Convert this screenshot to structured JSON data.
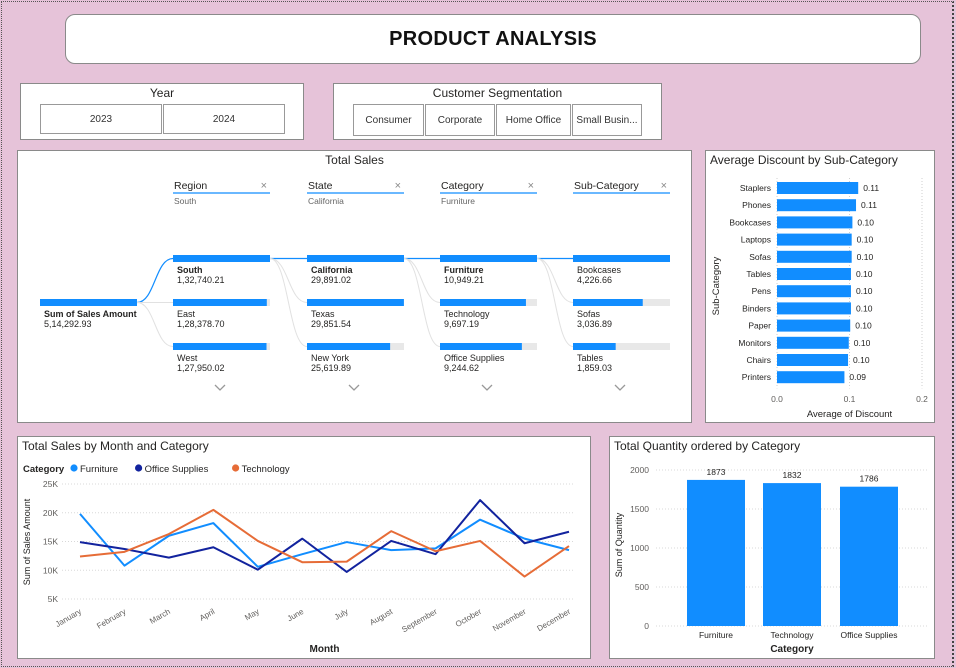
{
  "report_title": "PRODUCT ANALYSIS",
  "year_slicer": {
    "title": "Year",
    "options": [
      "2023",
      "2024"
    ]
  },
  "segment_slicer": {
    "title": "Customer Segmentation",
    "options": [
      "Consumer",
      "Corporate",
      "Home Office",
      "Small Busin..."
    ]
  },
  "decomp_tree": {
    "title": "Total Sales",
    "root": {
      "label": "Sum of Sales Amount",
      "value": "5,14,292.93"
    },
    "levels": [
      {
        "header": "Region",
        "selected": "South",
        "nodes": [
          {
            "label": "South",
            "value": "1,32,740.21",
            "fill": 1.0,
            "bold": true
          },
          {
            "label": "East",
            "value": "1,28,378.70",
            "fill": 0.967,
            "bold": false
          },
          {
            "label": "West",
            "value": "1,27,950.02",
            "fill": 0.964,
            "bold": false
          }
        ]
      },
      {
        "header": "State",
        "selected": "California",
        "nodes": [
          {
            "label": "California",
            "value": "29,891.02",
            "fill": 1.0,
            "bold": true
          },
          {
            "label": "Texas",
            "value": "29,851.54",
            "fill": 0.999,
            "bold": false
          },
          {
            "label": "New York",
            "value": "25,619.89",
            "fill": 0.857,
            "bold": false
          }
        ]
      },
      {
        "header": "Category",
        "selected": "Furniture",
        "nodes": [
          {
            "label": "Furniture",
            "value": "10,949.21",
            "fill": 1.0,
            "bold": true
          },
          {
            "label": "Technology",
            "value": "9,697.19",
            "fill": 0.886,
            "bold": false
          },
          {
            "label": "Office Supplies",
            "value": "9,244.62",
            "fill": 0.844,
            "bold": false
          }
        ]
      },
      {
        "header": "Sub-Category",
        "selected": "",
        "nodes": [
          {
            "label": "Bookcases",
            "value": "4,226.66",
            "fill": 1.0,
            "bold": false
          },
          {
            "label": "Sofas",
            "value": "3,036.89",
            "fill": 0.719,
            "bold": false
          },
          {
            "label": "Tables",
            "value": "1,859.03",
            "fill": 0.44,
            "bold": false
          }
        ]
      }
    ]
  },
  "discount_chart": {
    "title": "Average Discount by Sub-Category",
    "chart_data": {
      "type": "bar",
      "orientation": "horizontal",
      "categories": [
        "Staplers",
        "Phones",
        "Bookcases",
        "Laptops",
        "Sofas",
        "Tables",
        "Pens",
        "Binders",
        "Paper",
        "Monitors",
        "Chairs",
        "Printers"
      ],
      "values": [
        0.112,
        0.109,
        0.104,
        0.103,
        0.103,
        0.102,
        0.102,
        0.102,
        0.101,
        0.099,
        0.098,
        0.093
      ],
      "labels": [
        "0.11",
        "0.11",
        "0.10",
        "0.10",
        "0.10",
        "0.10",
        "0.10",
        "0.10",
        "0.10",
        "0.10",
        "0.10",
        "0.09"
      ],
      "xlabel": "Average of Discount",
      "ylabel": "Sub-Category",
      "xlim": [
        0,
        0.2
      ],
      "xticks": [
        "0.0",
        "0.1",
        "0.2"
      ],
      "color": "#118dff"
    }
  },
  "month_chart": {
    "title": "Total Sales by Month and Category",
    "legend_title": "Category",
    "chart_data": {
      "type": "line",
      "categories": [
        "January",
        "February",
        "March",
        "April",
        "May",
        "June",
        "July",
        "August",
        "September",
        "October",
        "November",
        "December"
      ],
      "series": [
        {
          "name": "Furniture",
          "color": "#118dff",
          "values": [
            19800,
            10800,
            16000,
            18200,
            10600,
            12800,
            14900,
            13500,
            13800,
            18800,
            15500,
            13500
          ]
        },
        {
          "name": "Office Supplies",
          "color": "#12239e",
          "values": [
            14900,
            13700,
            12200,
            14000,
            10100,
            15500,
            9700,
            15100,
            12800,
            22200,
            14700,
            16700
          ]
        },
        {
          "name": "Technology",
          "color": "#e66c37",
          "values": [
            12400,
            13200,
            16300,
            20500,
            15100,
            11400,
            11500,
            16800,
            13300,
            15100,
            8900,
            14200
          ]
        }
      ],
      "xlabel": "Month",
      "ylabel": "Sum of Sales Amount",
      "ylim": [
        5000,
        25000
      ],
      "yticks": [
        "5K",
        "10K",
        "15K",
        "20K",
        "25K"
      ]
    }
  },
  "quantity_chart": {
    "title": "Total Quantity ordered by Category",
    "chart_data": {
      "type": "bar",
      "categories": [
        "Furniture",
        "Technology",
        "Office Supplies"
      ],
      "values": [
        1873,
        1832,
        1786
      ],
      "labels": [
        "1873",
        "1832",
        "1786"
      ],
      "xlabel": "Category",
      "ylabel": "Sum of Quantity",
      "ylim": [
        0,
        2000
      ],
      "yticks": [
        "0",
        "500",
        "1000",
        "1500",
        "2000"
      ],
      "color": "#118dff"
    }
  }
}
